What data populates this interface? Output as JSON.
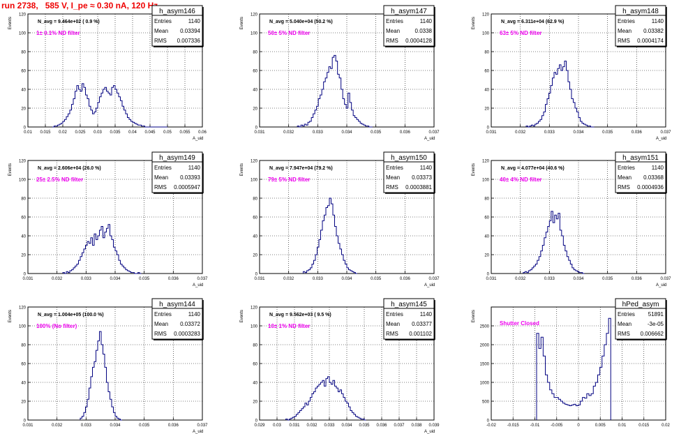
{
  "page": {
    "title": "run 2738,   585 V, I_pe ≈ 0.30 nA, 120 Hz",
    "colors": {
      "title": "#ee0000",
      "histogram": "#000080",
      "annotation": "#ee00ee",
      "grid": "#000000"
    }
  },
  "chart_data": [
    {
      "type": "bar",
      "name": "h_asym146",
      "ylabel": "Events",
      "xlabel": "A_uid",
      "xlim": [
        0.01,
        0.06
      ],
      "ylim": [
        0,
        120
      ],
      "xticks": [
        "0.01",
        "0.015",
        "0.02",
        "0.025",
        "0.03",
        "0.035",
        "0.04",
        "0.045",
        "0.05",
        "0.055",
        "0.06"
      ],
      "yticks": [
        "0",
        "20",
        "40",
        "60",
        "80",
        "100",
        "120"
      ],
      "navg": "N_avg = 9.464e+02 ( 0.9 %)",
      "note": "1± 0.1% ND filter",
      "stats": {
        "entries_label": "Entries",
        "entries": "1140",
        "mean_label": "Mean",
        "mean": "0.03394",
        "rms_label": "RMS",
        "rms": "0.007336"
      },
      "x0": 0.017,
      "bin": 0.0005,
      "values": [
        0,
        1,
        1,
        2,
        3,
        4,
        6,
        8,
        11,
        14,
        18,
        24,
        30,
        38,
        44,
        40,
        38,
        46,
        42,
        34,
        30,
        22,
        18,
        14,
        16,
        20,
        26,
        32,
        36,
        40,
        42,
        38,
        36,
        34,
        42,
        44,
        40,
        36,
        32,
        28,
        22,
        18,
        14,
        10,
        8,
        6,
        5,
        4,
        3,
        2,
        2,
        1,
        1,
        0,
        0,
        0,
        0,
        0,
        0,
        0,
        0,
        0,
        0,
        0,
        0,
        0
      ]
    },
    {
      "type": "bar",
      "name": "h_asym147",
      "ylabel": "Events",
      "xlabel": "A_uid",
      "xlim": [
        0.031,
        0.037
      ],
      "ylim": [
        0,
        120
      ],
      "xticks": [
        "0.031",
        "0.032",
        "0.033",
        "0.034",
        "0.035",
        "0.036",
        "0.037"
      ],
      "yticks": [
        "0",
        "20",
        "40",
        "60",
        "80",
        "100",
        "120"
      ],
      "navg": "N_avg = 5.040e+04 (50.2 %)",
      "note": "50± 5% ND filter",
      "stats": {
        "entries_label": "Entries",
        "entries": "1140",
        "mean_label": "Mean",
        "mean": "0.0338",
        "rms_label": "RMS",
        "rms": "0.0004128"
      },
      "x0": 0.0323,
      "bin": 6e-05,
      "values": [
        1,
        0,
        2,
        1,
        3,
        2,
        5,
        6,
        10,
        14,
        18,
        22,
        30,
        34,
        40,
        48,
        52,
        58,
        64,
        62,
        74,
        76,
        70,
        56,
        52,
        40,
        30,
        24,
        20,
        36,
        26,
        18,
        12,
        10,
        8,
        6,
        4,
        3,
        2,
        1,
        1,
        0,
        0
      ]
    },
    {
      "type": "bar",
      "name": "h_asym148",
      "ylabel": "Events",
      "xlabel": "A_uid",
      "xlim": [
        0.031,
        0.037
      ],
      "ylim": [
        0,
        120
      ],
      "xticks": [
        "0.031",
        "0.032",
        "0.033",
        "0.034",
        "0.035",
        "0.036",
        "0.037"
      ],
      "yticks": [
        "0",
        "20",
        "40",
        "60",
        "80",
        "100",
        "120"
      ],
      "navg": "N_avg = 6.311e+04 (62.9 %)",
      "note": "63± 5% ND filter",
      "stats": {
        "entries_label": "Entries",
        "entries": "1140",
        "mean_label": "Mean",
        "mean": "0.03382",
        "rms_label": "RMS",
        "rms": "0.0004174"
      },
      "x0": 0.0322,
      "bin": 6e-05,
      "values": [
        1,
        0,
        1,
        2,
        1,
        3,
        4,
        6,
        8,
        12,
        16,
        24,
        30,
        36,
        44,
        52,
        58,
        56,
        62,
        66,
        60,
        64,
        70,
        60,
        48,
        40,
        30,
        26,
        20,
        16,
        10,
        6,
        4,
        3,
        2,
        1,
        1,
        0,
        0
      ]
    },
    {
      "type": "bar",
      "name": "h_asym149",
      "ylabel": "Events",
      "xlabel": "A_uid",
      "xlim": [
        0.031,
        0.037
      ],
      "ylim": [
        0,
        120
      ],
      "xticks": [
        "0.031",
        "0.032",
        "0.033",
        "0.034",
        "0.035",
        "0.036",
        "0.037"
      ],
      "yticks": [
        "0",
        "20",
        "40",
        "60",
        "80",
        "100",
        "120"
      ],
      "navg": "N_avg = 2.606e+04 (26.0 %)",
      "note": "25± 2.5% ND filter",
      "stats": {
        "entries_label": "Entries",
        "entries": "1140",
        "mean_label": "Mean",
        "mean": "0.03393",
        "rms_label": "RMS",
        "rms": "0.0005947"
      },
      "x0": 0.0322,
      "bin": 6e-05,
      "values": [
        1,
        0,
        2,
        1,
        3,
        4,
        6,
        8,
        10,
        14,
        18,
        22,
        26,
        30,
        34,
        32,
        38,
        30,
        42,
        36,
        40,
        46,
        50,
        38,
        44,
        48,
        52,
        40,
        36,
        28,
        24,
        20,
        14,
        10,
        8,
        6,
        4,
        3,
        2,
        1,
        1,
        0,
        0,
        1,
        0
      ]
    },
    {
      "type": "bar",
      "name": "h_asym150",
      "ylabel": "Events",
      "xlabel": "A_uid",
      "xlim": [
        0.031,
        0.037
      ],
      "ylim": [
        0,
        120
      ],
      "xticks": [
        "0.031",
        "0.032",
        "0.033",
        "0.034",
        "0.035",
        "0.036",
        "0.037"
      ],
      "yticks": [
        "0",
        "20",
        "40",
        "60",
        "80",
        "100",
        "120"
      ],
      "navg": "N_avg = 7.947e+04 (79.2 %)",
      "note": "79± 5% ND filter",
      "stats": {
        "entries_label": "Entries",
        "entries": "1140",
        "mean_label": "Mean",
        "mean": "0.03373",
        "rms_label": "RMS",
        "rms": "0.0003881"
      },
      "x0": 0.0325,
      "bin": 6e-05,
      "values": [
        2,
        1,
        3,
        4,
        6,
        10,
        14,
        20,
        28,
        36,
        46,
        56,
        62,
        70,
        72,
        80,
        74,
        62,
        50,
        40,
        32,
        26,
        20,
        14,
        10,
        6,
        4,
        3,
        2,
        1,
        0
      ]
    },
    {
      "type": "bar",
      "name": "h_asym151",
      "ylabel": "Events",
      "xlabel": "A_uid",
      "xlim": [
        0.031,
        0.037
      ],
      "ylim": [
        0,
        120
      ],
      "xticks": [
        "0.031",
        "0.032",
        "0.033",
        "0.034",
        "0.035",
        "0.036",
        "0.037"
      ],
      "yticks": [
        "0",
        "20",
        "40",
        "60",
        "80",
        "100",
        "120"
      ],
      "navg": "N_avg = 4.077e+04 (40.6 %)",
      "note": "40± 4% ND filter",
      "stats": {
        "entries_label": "Entries",
        "entries": "1140",
        "mean_label": "Mean",
        "mean": "0.03368",
        "rms_label": "RMS",
        "rms": "0.0004936"
      },
      "x0": 0.0321,
      "bin": 6e-05,
      "values": [
        1,
        2,
        1,
        3,
        4,
        6,
        8,
        10,
        14,
        18,
        24,
        30,
        38,
        44,
        50,
        56,
        66,
        54,
        62,
        58,
        64,
        46,
        40,
        30,
        24,
        18,
        14,
        10,
        6,
        4,
        3,
        2,
        1,
        1,
        0
      ]
    },
    {
      "type": "bar",
      "name": "h_asym144",
      "ylabel": "Events",
      "xlabel": "A_uid",
      "xlim": [
        0.031,
        0.037
      ],
      "ylim": [
        0,
        120
      ],
      "xticks": [
        "0.031",
        "0.032",
        "0.033",
        "0.034",
        "0.035",
        "0.036",
        "0.037"
      ],
      "yticks": [
        "0",
        "20",
        "40",
        "60",
        "80",
        "100",
        "120"
      ],
      "navg": "N_avg = 1.004e+05 (100.0 %)",
      "note": "100% (No filter)",
      "stats": {
        "entries_label": "Entries",
        "entries": "1140",
        "mean_label": "Mean",
        "mean": "0.03372",
        "rms_label": "RMS",
        "rms": "0.0003283"
      },
      "x0": 0.0328,
      "bin": 6e-05,
      "values": [
        2,
        4,
        8,
        14,
        22,
        34,
        46,
        56,
        62,
        74,
        84,
        94,
        80,
        70,
        56,
        40,
        30,
        22,
        14,
        8,
        4,
        2,
        1,
        0
      ]
    },
    {
      "type": "bar",
      "name": "h_asym145",
      "ylabel": "Events",
      "xlabel": "A_uid",
      "xlim": [
        0.029,
        0.039
      ],
      "ylim": [
        0,
        120
      ],
      "xticks": [
        "0.029",
        "0.03",
        "0.031",
        "0.032",
        "0.033",
        "0.034",
        "0.035",
        "0.036",
        "0.037",
        "0.038",
        "0.039"
      ],
      "yticks": [
        "0",
        "20",
        "40",
        "60",
        "80",
        "100",
        "120"
      ],
      "navg": "N_avg = 9.562e+03 ( 9.5 %)",
      "note": "10± 1% ND filter",
      "stats": {
        "entries_label": "Entries",
        "entries": "1140",
        "mean_label": "Mean",
        "mean": "0.03377",
        "rms_label": "RMS",
        "rms": "0.001102"
      },
      "x0": 0.0305,
      "bin": 0.0001,
      "values": [
        1,
        0,
        1,
        2,
        3,
        4,
        6,
        8,
        10,
        12,
        14,
        18,
        16,
        20,
        24,
        28,
        30,
        34,
        36,
        38,
        40,
        42,
        36,
        44,
        46,
        40,
        38,
        42,
        36,
        34,
        30,
        32,
        28,
        24,
        20,
        18,
        14,
        10,
        8,
        6,
        4,
        3,
        2,
        1,
        1,
        0
      ]
    },
    {
      "type": "bar",
      "name": "hPed_asym",
      "ylabel": "Events",
      "xlabel": "",
      "xlim": [
        -0.02,
        0.02
      ],
      "ylim": [
        0,
        3000
      ],
      "xticks": [
        "-0.02",
        "-0.015",
        "-0.01",
        "-0.005",
        "0",
        "0.005",
        "0.01",
        "0.015",
        "0.02"
      ],
      "yticks": [
        "0",
        "500",
        "1000",
        "1500",
        "2000",
        "2500"
      ],
      "yticks_values": [
        0,
        500,
        1000,
        1500,
        2000,
        2500
      ],
      "navg": "",
      "note": "Shutter Closed",
      "stats": {
        "entries_label": "Entries",
        "entries": "51891",
        "mean_label": "Mean",
        "mean": "-3e-05",
        "rms_label": "RMS",
        "rms": "0.006662"
      },
      "x0": -0.0096,
      "bin": 0.0005,
      "values": [
        2300,
        1900,
        2200,
        1700,
        1200,
        1000,
        800,
        700,
        600,
        600,
        550,
        500,
        450,
        420,
        400,
        380,
        400,
        420,
        380,
        400,
        500,
        600,
        580,
        700,
        650,
        700,
        900,
        1000,
        1200,
        1400,
        1700,
        2000,
        2300,
        2700
      ]
    }
  ]
}
